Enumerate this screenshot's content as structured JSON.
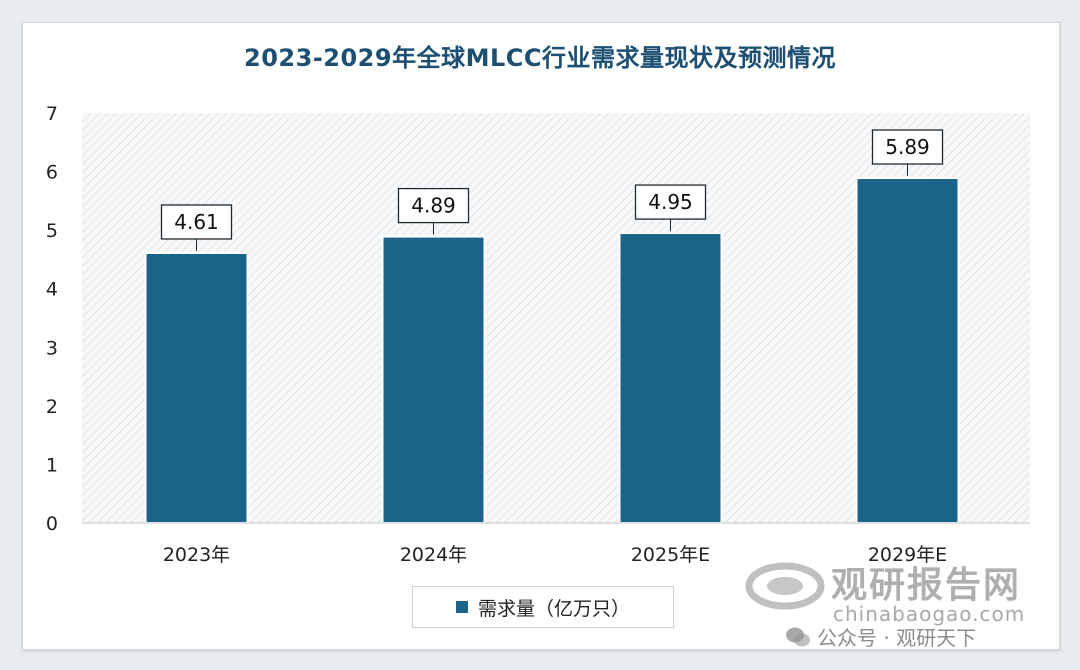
{
  "chart_data": {
    "type": "bar",
    "title": "2023-2029年全球MLCC行业需求量现状及预测情况",
    "categories": [
      "2023年",
      "2024年",
      "2025年E",
      "2029年E"
    ],
    "series": [
      {
        "name": "需求量（亿万只）",
        "values": [
          4.61,
          4.89,
          4.95,
          5.89
        ]
      }
    ],
    "data_labels": [
      "4.61",
      "4.89",
      "4.95",
      "5.89"
    ],
    "ylim": [
      0,
      7
    ],
    "yticks": [
      0,
      1,
      2,
      3,
      4,
      5,
      6,
      7
    ],
    "xlabel": "",
    "ylabel": "",
    "legend_position": "bottom",
    "bar_color": "#1b6489",
    "grid": false
  },
  "watermark": {
    "brand_cn": "观研报告网",
    "url": "chinabaogao.com",
    "account": "公众号 · 观研天下",
    "icon": "wechat-icon"
  }
}
